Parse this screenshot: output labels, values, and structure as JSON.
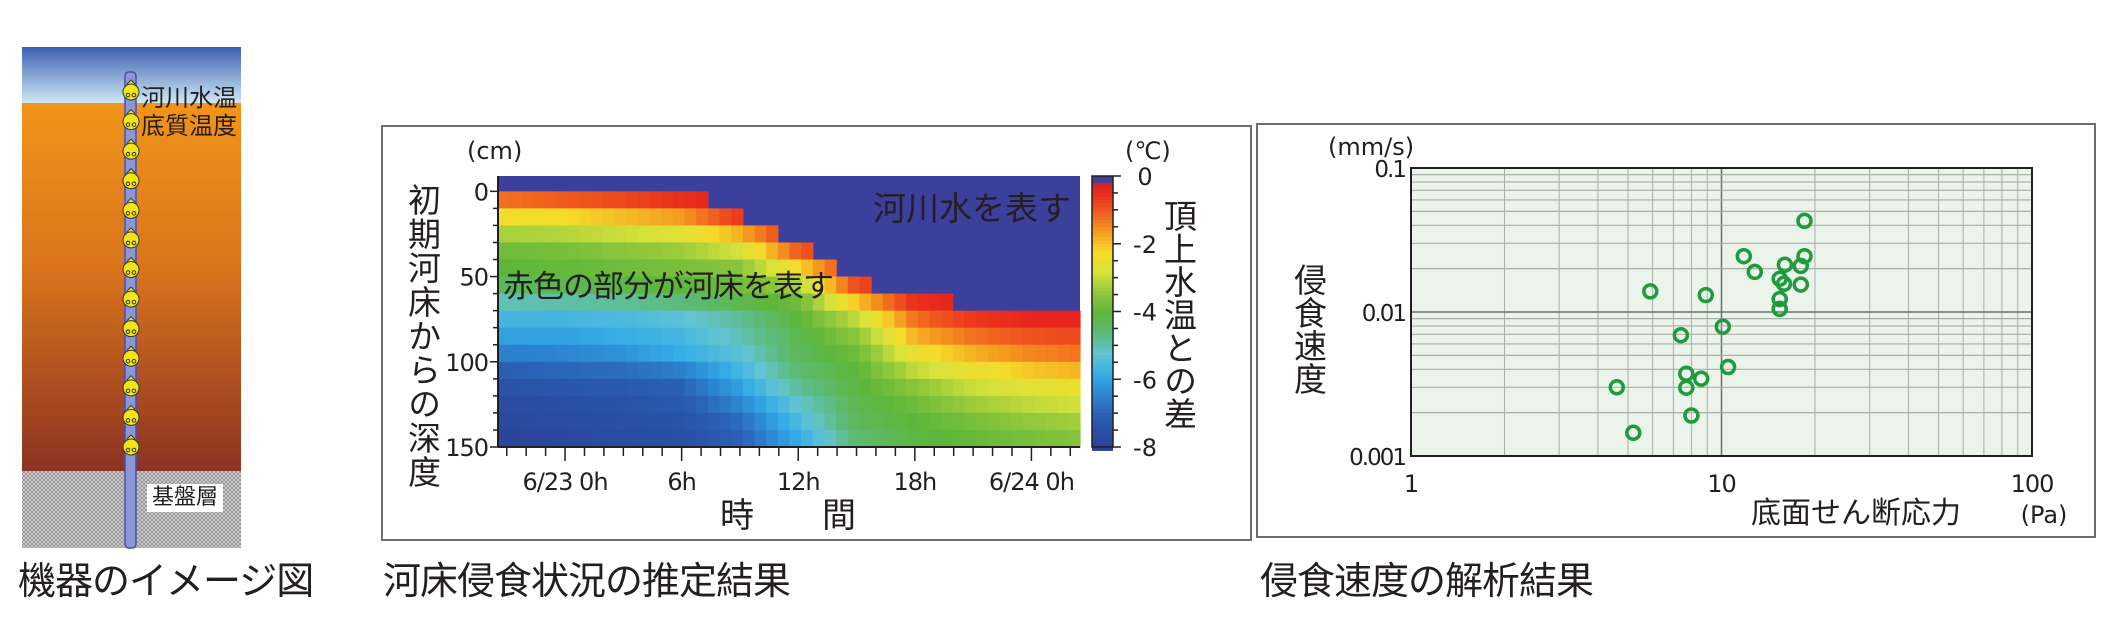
{
  "diagram": {
    "caption": "機器のイメージ図",
    "label_river_temp": "河川水温",
    "label_sediment_temp": "底質温度",
    "label_bedrock": "基盤層",
    "sensor_count": 13,
    "colors": {
      "sky_top": "#3d62b2",
      "sky_bottom": "#cfe8f4",
      "sediment_top": "#f29418",
      "sediment_bottom": "#8c3322",
      "sensor": "#f2e516",
      "pipe": "#8c95d6"
    }
  },
  "heatmap_panel": {
    "caption": "河床侵食状況の推定結果"
  },
  "scatter_panel": {
    "caption": "侵食速度の解析結果"
  },
  "chart_data": [
    {
      "type": "heatmap",
      "xlabel": "時　　間",
      "ylabel": "初期河床からの深度",
      "y_unit": "(cm)",
      "colorbar_label": "頂上水温との差",
      "colorbar_unit": "(℃)",
      "x_ticks": [
        {
          "time": "6/23 0:00",
          "label": "6/23 0h"
        },
        {
          "time": "6/23 6:00",
          "label": "6h"
        },
        {
          "time": "6/23 12:00",
          "label": "12h"
        },
        {
          "time": "6/23 18:00",
          "label": "18h"
        },
        {
          "time": "6/24 0:00",
          "label": "6/24 0h"
        }
      ],
      "xlim": [
        "6/22 20:33",
        "6/24 2:30"
      ],
      "y_ticks": [
        0,
        50,
        100,
        150
      ],
      "ylim": [
        -9,
        150
      ],
      "colorbar_ticks": [
        0,
        -2,
        -4,
        -6,
        -8
      ],
      "clim": [
        -8,
        0
      ],
      "annotations": {
        "water": "河川水を表す",
        "bed": "赤色の部分が河床を表す"
      },
      "depths_cm": [
        0,
        10,
        20,
        30,
        40,
        50,
        60,
        70,
        80,
        90,
        100,
        110,
        120,
        130,
        140
      ],
      "bed_surface": [
        {
          "time": "6/22 20:33",
          "depth": 0
        },
        {
          "time": "6/23 7:06",
          "depth": 10
        },
        {
          "time": "6/23 9:18",
          "depth": 20
        },
        {
          "time": "6/23 10:48",
          "depth": 30
        },
        {
          "time": "6/23 12:48",
          "depth": 40
        },
        {
          "time": "6/23 14:12",
          "depth": 50
        },
        {
          "time": "6/23 15:54",
          "depth": 60
        },
        {
          "time": "6/23 20:00",
          "depth": 70
        }
      ],
      "columns": [
        {
          "time": "6/22 21:00",
          "values": [
            -1.2,
            -2.3,
            -3.2,
            -3.8,
            -4.0,
            -4.3,
            -5.0,
            -5.6,
            -6.0,
            -6.5,
            -7.0,
            -7.4,
            -7.6,
            -7.7,
            -7.8
          ]
        },
        {
          "time": "6/23 0:00",
          "values": [
            -1.0,
            -2.2,
            -3.1,
            -3.7,
            -3.9,
            -4.2,
            -4.9,
            -5.6,
            -6.0,
            -6.4,
            -6.9,
            -7.3,
            -7.5,
            -7.6,
            -7.7
          ]
        },
        {
          "time": "6/23 3:00",
          "values": [
            -0.8,
            -1.9,
            -2.9,
            -3.5,
            -3.8,
            -4.1,
            -4.8,
            -5.5,
            -5.8,
            -6.2,
            -6.8,
            -7.2,
            -7.4,
            -7.5,
            -7.6
          ]
        },
        {
          "time": "6/23 6:00",
          "values": [
            -0.5,
            -1.6,
            -2.6,
            -3.3,
            -3.7,
            -4.0,
            -4.6,
            -5.3,
            -5.6,
            -5.8,
            -6.5,
            -7.0,
            -7.2,
            -7.4,
            -7.5
          ]
        },
        {
          "time": "6/23 9:00",
          "values": [
            -0.3,
            -0.6,
            -1.8,
            -2.8,
            -3.5,
            -3.8,
            -4.2,
            -4.8,
            -5.0,
            -5.3,
            -5.6,
            -6.0,
            -6.4,
            -6.8,
            -7.0
          ]
        },
        {
          "time": "6/23 12:00",
          "values": [
            -0.3,
            -0.3,
            -0.4,
            -1.0,
            -2.2,
            -3.2,
            -3.8,
            -4.0,
            -4.2,
            -4.3,
            -4.5,
            -4.8,
            -5.2,
            -5.5,
            -5.8
          ]
        },
        {
          "time": "6/23 15:00",
          "values": [
            -0.3,
            -0.3,
            -0.3,
            -0.3,
            -0.4,
            -0.8,
            -2.0,
            -3.0,
            -3.5,
            -3.8,
            -4.0,
            -4.1,
            -4.2,
            -4.3,
            -4.5
          ]
        },
        {
          "time": "6/23 18:00",
          "values": [
            -0.3,
            -0.3,
            -0.3,
            -0.3,
            -0.3,
            -0.3,
            -0.5,
            -1.2,
            -1.8,
            -2.4,
            -3.0,
            -3.5,
            -3.8,
            -4.0,
            -4.1
          ]
        },
        {
          "time": "6/23 21:00",
          "values": [
            -0.3,
            -0.3,
            -0.3,
            -0.3,
            -0.3,
            -0.3,
            -0.3,
            -0.6,
            -1.2,
            -1.8,
            -2.4,
            -2.9,
            -3.3,
            -3.7,
            -3.9
          ]
        },
        {
          "time": "6/24 0:00",
          "values": [
            -0.3,
            -0.3,
            -0.3,
            -0.3,
            -0.3,
            -0.3,
            -0.3,
            -0.4,
            -0.9,
            -1.4,
            -2.0,
            -2.6,
            -3.0,
            -3.4,
            -3.7
          ]
        },
        {
          "time": "6/24 3:00",
          "values": [
            -0.3,
            -0.3,
            -0.3,
            -0.3,
            -0.3,
            -0.3,
            -0.3,
            -0.4,
            -0.8,
            -1.2,
            -1.8,
            -2.4,
            -2.8,
            -3.2,
            -3.5
          ]
        }
      ],
      "water_value": 0,
      "colors": {
        "water": "#3d3f9d"
      }
    },
    {
      "type": "scatter",
      "xlabel": "底面せん断応力",
      "x_unit": "(Pa)",
      "ylabel": "侵食速度",
      "y_unit": "(mm/s)",
      "x_scale": "log",
      "y_scale": "log",
      "xlim": [
        1,
        100
      ],
      "ylim": [
        0.001,
        0.1
      ],
      "x_ticks": [
        {
          "value": 1,
          "label": "1"
        },
        {
          "value": 10,
          "label": "10"
        },
        {
          "value": 100,
          "label": "100"
        }
      ],
      "y_ticks": [
        {
          "value": 0.1,
          "label": "0.1"
        },
        {
          "value": 0.01,
          "label": "0.01"
        },
        {
          "value": 0.001,
          "label": "0.001"
        }
      ],
      "grid": true,
      "marker": "open-circle",
      "colors": {
        "marker": "#1f9a3c",
        "background": "#ebf4eb",
        "grid": "#a7aea7"
      },
      "points": [
        {
          "x": 18.5,
          "y": 0.0429
        },
        {
          "x": 11.8,
          "y": 0.0244
        },
        {
          "x": 12.8,
          "y": 0.019
        },
        {
          "x": 18.5,
          "y": 0.0244
        },
        {
          "x": 16.0,
          "y": 0.0213
        },
        {
          "x": 18.0,
          "y": 0.0209
        },
        {
          "x": 15.4,
          "y": 0.017
        },
        {
          "x": 15.9,
          "y": 0.0157
        },
        {
          "x": 18.0,
          "y": 0.0155
        },
        {
          "x": 15.4,
          "y": 0.0123
        },
        {
          "x": 15.4,
          "y": 0.0105
        },
        {
          "x": 5.9,
          "y": 0.0139
        },
        {
          "x": 8.9,
          "y": 0.0131
        },
        {
          "x": 10.1,
          "y": 0.0079
        },
        {
          "x": 7.4,
          "y": 0.0069
        },
        {
          "x": 10.5,
          "y": 0.00415
        },
        {
          "x": 7.7,
          "y": 0.00373
        },
        {
          "x": 8.6,
          "y": 0.00344
        },
        {
          "x": 7.7,
          "y": 0.00298
        },
        {
          "x": 4.6,
          "y": 0.003
        },
        {
          "x": 8.0,
          "y": 0.00191
        },
        {
          "x": 5.2,
          "y": 0.00145
        }
      ]
    }
  ]
}
